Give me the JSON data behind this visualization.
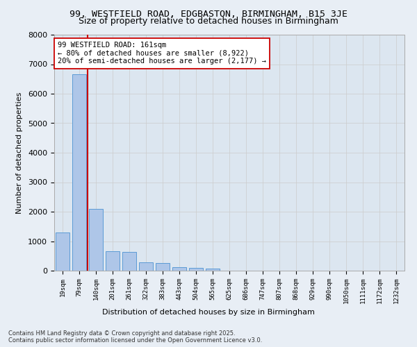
{
  "title_line1": "99, WESTFIELD ROAD, EDGBASTON, BIRMINGHAM, B15 3JE",
  "title_line2": "Size of property relative to detached houses in Birmingham",
  "xlabel": "Distribution of detached houses by size in Birmingham",
  "ylabel": "Number of detached properties",
  "categories": [
    "19sqm",
    "79sqm",
    "140sqm",
    "201sqm",
    "261sqm",
    "322sqm",
    "383sqm",
    "443sqm",
    "504sqm",
    "565sqm",
    "625sqm",
    "686sqm",
    "747sqm",
    "807sqm",
    "868sqm",
    "929sqm",
    "990sqm",
    "1050sqm",
    "1111sqm",
    "1172sqm",
    "1232sqm"
  ],
  "values": [
    1300,
    6650,
    2100,
    650,
    630,
    280,
    260,
    120,
    95,
    60,
    0,
    0,
    0,
    0,
    0,
    0,
    0,
    0,
    0,
    0,
    0
  ],
  "bar_color": "#aec6e8",
  "bar_edge_color": "#5b9bd5",
  "vline_color": "#cc0000",
  "annotation_text": "99 WESTFIELD ROAD: 161sqm\n← 80% of detached houses are smaller (8,922)\n20% of semi-detached houses are larger (2,177) →",
  "annotation_box_color": "#ffffff",
  "annotation_box_edge": "#cc0000",
  "ylim": [
    0,
    8000
  ],
  "yticks": [
    0,
    1000,
    2000,
    3000,
    4000,
    5000,
    6000,
    7000,
    8000
  ],
  "grid_color": "#cccccc",
  "bg_color": "#e8eef5",
  "plot_bg_color": "#dce6f0",
  "footer_line1": "Contains HM Land Registry data © Crown copyright and database right 2025.",
  "footer_line2": "Contains public sector information licensed under the Open Government Licence v3.0."
}
